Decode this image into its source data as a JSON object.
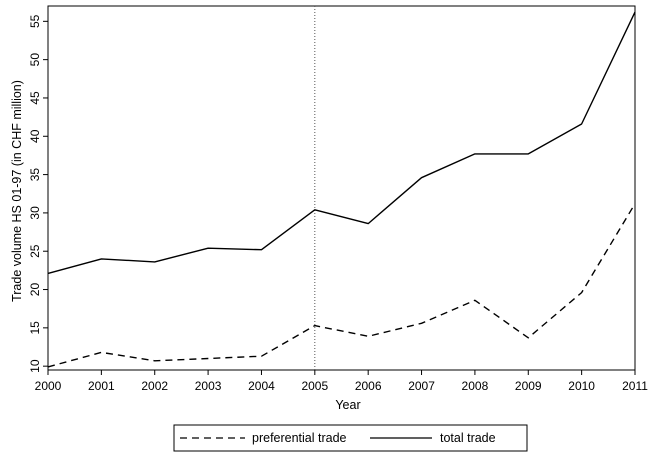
{
  "chart_data": {
    "type": "line",
    "title": "",
    "xlabel": "Year",
    "ylabel": "Trade volume HS 01-97 (in CHF million)",
    "x": [
      2000,
      2001,
      2002,
      2003,
      2004,
      2005,
      2006,
      2007,
      2008,
      2009,
      2010,
      2011
    ],
    "x_ticks": [
      "2000",
      "2001",
      "2002",
      "2003",
      "2004",
      "2005",
      "2006",
      "2007",
      "2008",
      "2009",
      "2010",
      "2011"
    ],
    "y_ticks": [
      "10",
      "15",
      "20",
      "25",
      "30",
      "35",
      "40",
      "45",
      "50",
      "55"
    ],
    "xlim": [
      2000,
      2011
    ],
    "ylim": [
      9.5,
      57
    ],
    "reference_line_x": 2005,
    "grid": false,
    "legend_position": "bottom",
    "series": [
      {
        "name": "preferential trade",
        "style": "dashed",
        "color": "#000000",
        "values": [
          9.9,
          11.8,
          10.7,
          11.0,
          11.3,
          15.3,
          13.9,
          15.6,
          18.6,
          13.7,
          19.6,
          31.2
        ]
      },
      {
        "name": "total trade",
        "style": "solid",
        "color": "#000000",
        "values": [
          22.1,
          24.0,
          23.6,
          25.4,
          25.2,
          30.4,
          28.6,
          34.6,
          37.7,
          37.7,
          41.6,
          56.2
        ]
      }
    ]
  }
}
